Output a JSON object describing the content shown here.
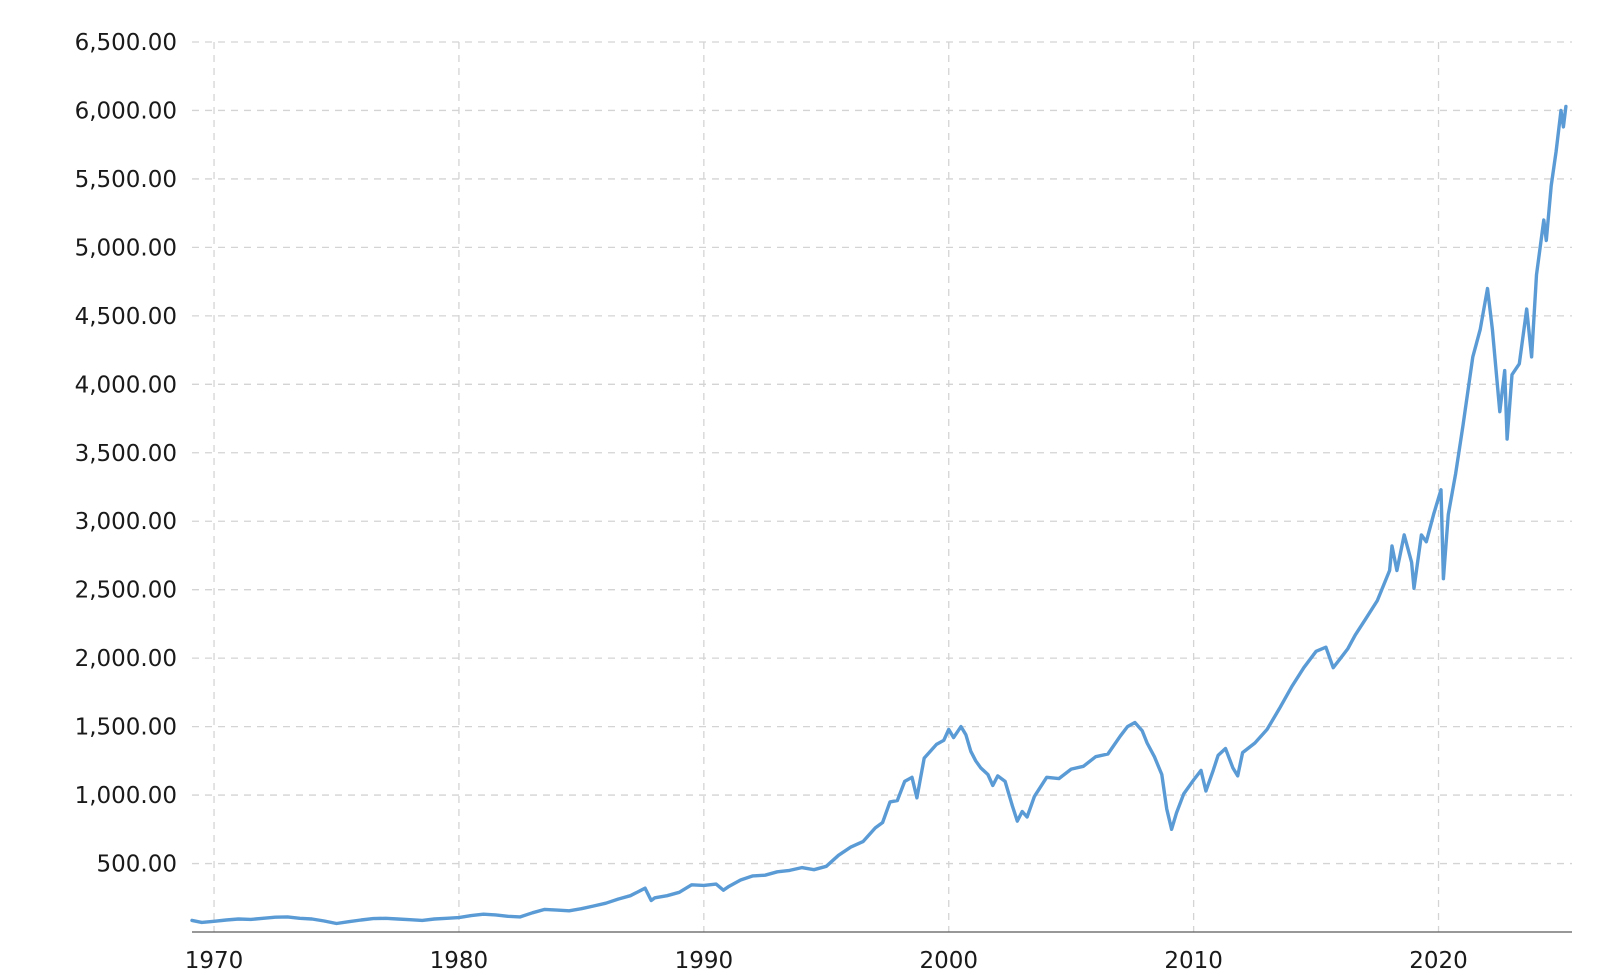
{
  "chart_data": {
    "type": "line",
    "title": "",
    "xlabel": "",
    "ylabel": "",
    "xlim": [
      1969.1,
      2024.0
    ],
    "ylim": [
      0,
      6500
    ],
    "x_ticks": [
      1970,
      1980,
      1990,
      2000,
      2010,
      2020
    ],
    "x_tick_labels": [
      "1970",
      "1980",
      "1990",
      "2000",
      "2010",
      "2020"
    ],
    "y_ticks": [
      500,
      1000,
      1500,
      2000,
      2500,
      3000,
      3500,
      4000,
      4500,
      5000,
      5500,
      6000,
      6500
    ],
    "y_tick_labels": [
      "500.00",
      "1,000.00",
      "1,500.00",
      "2,000.00",
      "2,500.00",
      "3,000.00",
      "3,500.00",
      "4,000.00",
      "4,500.00",
      "5,000.00",
      "5,500.00",
      "6,000.00",
      "6,500.00"
    ],
    "grid": {
      "horizontal": true,
      "vertical": true,
      "style": "dashed"
    },
    "legend": "none",
    "series": [
      {
        "color": "#5b9bd5",
        "points": [
          [
            1969.1,
            85
          ],
          [
            1969.5,
            70
          ],
          [
            1970.0,
            78
          ],
          [
            1970.5,
            88
          ],
          [
            1971.0,
            95
          ],
          [
            1971.5,
            92
          ],
          [
            1972.0,
            100
          ],
          [
            1972.5,
            108
          ],
          [
            1973.0,
            110
          ],
          [
            1973.5,
            100
          ],
          [
            1974.0,
            95
          ],
          [
            1974.5,
            80
          ],
          [
            1975.0,
            62
          ],
          [
            1975.5,
            75
          ],
          [
            1976.0,
            88
          ],
          [
            1976.5,
            98
          ],
          [
            1977.0,
            100
          ],
          [
            1977.5,
            95
          ],
          [
            1978.0,
            90
          ],
          [
            1978.5,
            85
          ],
          [
            1979.0,
            95
          ],
          [
            1979.5,
            100
          ],
          [
            1980.0,
            105
          ],
          [
            1980.5,
            120
          ],
          [
            1981.0,
            130
          ],
          [
            1981.5,
            125
          ],
          [
            1982.0,
            115
          ],
          [
            1982.5,
            110
          ],
          [
            1983.0,
            140
          ],
          [
            1983.5,
            165
          ],
          [
            1984.0,
            160
          ],
          [
            1984.5,
            155
          ],
          [
            1985.0,
            170
          ],
          [
            1985.5,
            190
          ],
          [
            1986.0,
            210
          ],
          [
            1986.5,
            240
          ],
          [
            1987.0,
            265
          ],
          [
            1987.6,
            320
          ],
          [
            1987.85,
            230
          ],
          [
            1988.0,
            250
          ],
          [
            1988.5,
            265
          ],
          [
            1989.0,
            290
          ],
          [
            1989.5,
            345
          ],
          [
            1990.0,
            340
          ],
          [
            1990.5,
            350
          ],
          [
            1990.8,
            305
          ],
          [
            1991.0,
            330
          ],
          [
            1991.5,
            380
          ],
          [
            1992.0,
            410
          ],
          [
            1992.5,
            415
          ],
          [
            1993.0,
            440
          ],
          [
            1993.5,
            450
          ],
          [
            1994.0,
            470
          ],
          [
            1994.5,
            455
          ],
          [
            1995.0,
            480
          ],
          [
            1995.5,
            560
          ],
          [
            1996.0,
            620
          ],
          [
            1996.5,
            660
          ],
          [
            1997.0,
            760
          ],
          [
            1997.3,
            800
          ],
          [
            1997.6,
            950
          ],
          [
            1997.9,
            960
          ],
          [
            1998.2,
            1100
          ],
          [
            1998.5,
            1130
          ],
          [
            1998.7,
            980
          ],
          [
            1999.0,
            1270
          ],
          [
            1999.5,
            1370
          ],
          [
            1999.8,
            1400
          ],
          [
            2000.0,
            1480
          ],
          [
            2000.2,
            1420
          ],
          [
            2000.5,
            1500
          ],
          [
            2000.7,
            1440
          ],
          [
            2000.9,
            1320
          ],
          [
            2001.1,
            1250
          ],
          [
            2001.3,
            1200
          ],
          [
            2001.6,
            1150
          ],
          [
            2001.8,
            1070
          ],
          [
            2002.0,
            1140
          ],
          [
            2002.3,
            1100
          ],
          [
            2002.6,
            920
          ],
          [
            2002.8,
            810
          ],
          [
            2003.0,
            880
          ],
          [
            2003.2,
            840
          ],
          [
            2003.5,
            990
          ],
          [
            2004.0,
            1130
          ],
          [
            2004.5,
            1120
          ],
          [
            2005.0,
            1190
          ],
          [
            2005.5,
            1210
          ],
          [
            2006.0,
            1280
          ],
          [
            2006.5,
            1300
          ],
          [
            2007.0,
            1430
          ],
          [
            2007.3,
            1500
          ],
          [
            2007.6,
            1530
          ],
          [
            2007.9,
            1470
          ],
          [
            2008.1,
            1380
          ],
          [
            2008.4,
            1280
          ],
          [
            2008.7,
            1150
          ],
          [
            2008.9,
            900
          ],
          [
            2009.1,
            750
          ],
          [
            2009.3,
            870
          ],
          [
            2009.6,
            1010
          ],
          [
            2010.0,
            1110
          ],
          [
            2010.3,
            1180
          ],
          [
            2010.5,
            1030
          ],
          [
            2010.8,
            1180
          ],
          [
            2011.0,
            1290
          ],
          [
            2011.3,
            1340
          ],
          [
            2011.6,
            1200
          ],
          [
            2011.8,
            1140
          ],
          [
            2012.0,
            1310
          ],
          [
            2012.5,
            1380
          ],
          [
            2013.0,
            1480
          ],
          [
            2013.5,
            1630
          ],
          [
            2014.0,
            1790
          ],
          [
            2014.5,
            1930
          ],
          [
            2015.0,
            2050
          ],
          [
            2015.4,
            2080
          ],
          [
            2015.7,
            1930
          ],
          [
            2016.0,
            2000
          ],
          [
            2016.3,
            2070
          ],
          [
            2016.6,
            2170
          ],
          [
            2017.0,
            2280
          ],
          [
            2017.5,
            2420
          ],
          [
            2018.0,
            2640
          ],
          [
            2018.1,
            2820
          ],
          [
            2018.3,
            2640
          ],
          [
            2018.6,
            2900
          ],
          [
            2018.9,
            2700
          ],
          [
            2019.0,
            2510
          ],
          [
            2019.3,
            2900
          ],
          [
            2019.5,
            2850
          ],
          [
            2019.8,
            3050
          ],
          [
            2020.1,
            3230
          ],
          [
            2020.2,
            2580
          ],
          [
            2020.4,
            3050
          ],
          [
            2020.7,
            3350
          ],
          [
            2021.0,
            3700
          ],
          [
            2021.4,
            4200
          ],
          [
            2021.7,
            4400
          ],
          [
            2022.0,
            4700
          ],
          [
            2022.2,
            4400
          ],
          [
            2022.5,
            3800
          ],
          [
            2022.7,
            4100
          ],
          [
            2022.8,
            3600
          ],
          [
            2023.0,
            4070
          ],
          [
            2023.3,
            4150
          ],
          [
            2023.6,
            4550
          ],
          [
            2023.8,
            4200
          ],
          [
            2024.0,
            4800
          ],
          [
            2024.3,
            5200
          ],
          [
            2024.4,
            5050
          ],
          [
            2024.6,
            5450
          ],
          [
            2024.8,
            5700
          ],
          [
            2025.0,
            6000
          ],
          [
            2025.1,
            5880
          ],
          [
            2025.2,
            6030
          ]
        ]
      }
    ]
  }
}
